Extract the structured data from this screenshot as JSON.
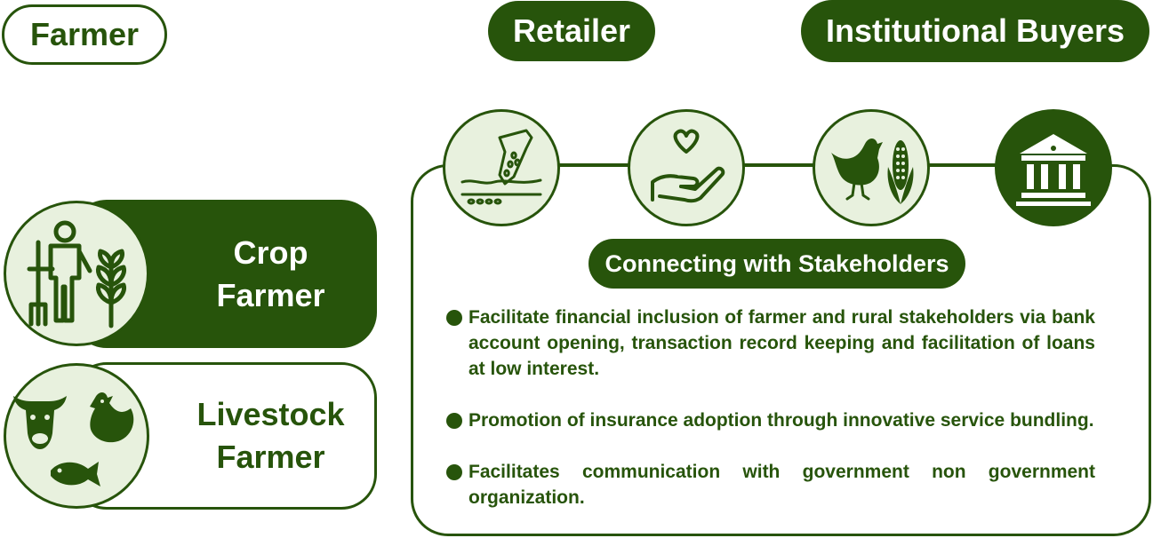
{
  "top_tags": {
    "farmer": "Farmer",
    "retailer": "Retailer",
    "institutional_buyers": "Institutional Buyers"
  },
  "farmer_types": [
    {
      "line1": "Crop",
      "line2": "Farmer",
      "icon": "farmer-with-crop-icon"
    },
    {
      "line1": "Livestock",
      "line2": "Farmer",
      "icon": "livestock-icon"
    }
  ],
  "stakeholder_icons": [
    "seed-sowing-icon",
    "heart-hand-icon",
    "hen-maize-icon",
    "bank-icon"
  ],
  "stakeholders": {
    "title": "Connecting with Stakeholders",
    "points": [
      "Facilitate financial inclusion of farmer and rural stakeholders via bank account opening, transaction record keeping and facilitation of loans at low interest.",
      "Promotion of insurance adoption through innovative service bundling.",
      "Facilitates communication with government non government organization."
    ]
  },
  "colors": {
    "primary": "#27540b",
    "light_fill": "#e8f1de",
    "background": "#ffffff"
  }
}
